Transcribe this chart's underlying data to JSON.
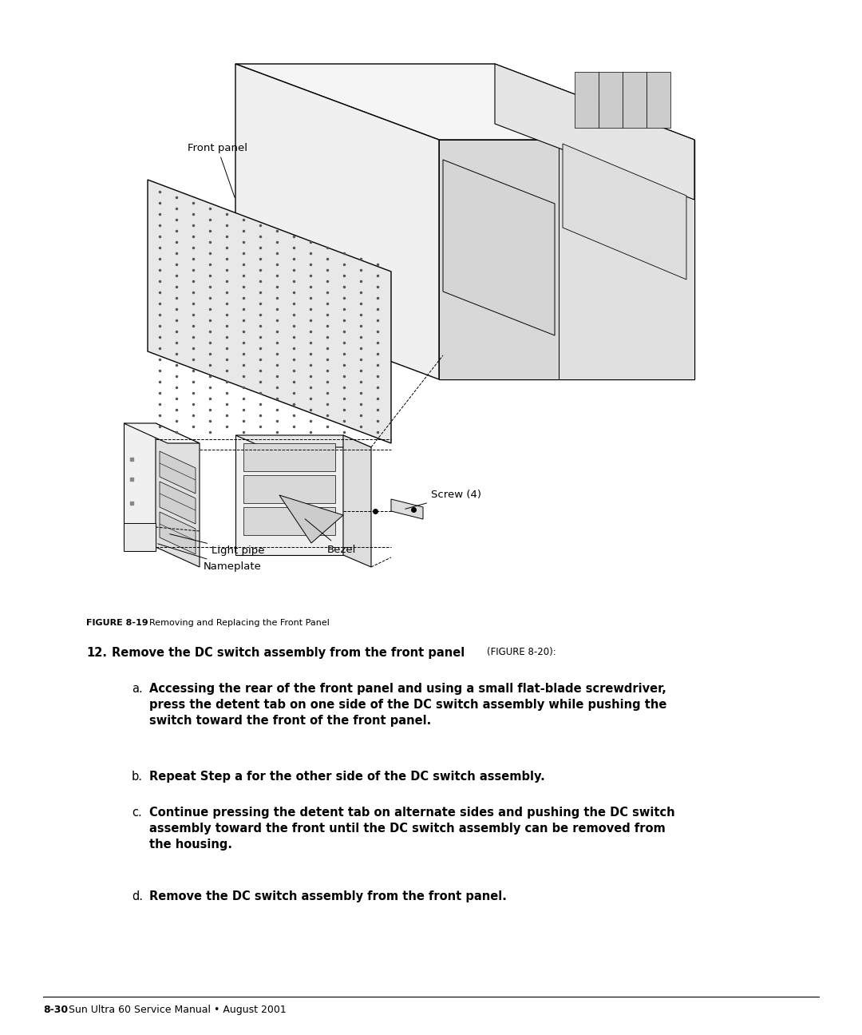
{
  "bg_color": "#ffffff",
  "page_width": 10.8,
  "page_height": 12.96,
  "figure_caption_bold": "FIGURE 8-19",
  "figure_caption_normal": "  Removing and Replacing the Front Panel",
  "step12_bold": "12. Remove the DC switch assembly from the front panel ",
  "step12_ref": "(FIGURE 8-20):",
  "step_a_label": "a.",
  "step_a_text": "Accessing the rear of the front panel and using a small flat-blade screwdriver,\npress the detent tab on one side of the DC switch assembly while pushing the\nswitch toward the front of the front panel.",
  "step_b_label": "b.",
  "step_b_text": "Repeat Step a for the other side of the DC switch assembly.",
  "step_c_label": "c.",
  "step_c_text": "Continue pressing the detent tab on alternate sides and pushing the DC switch\nassembly toward the front until the DC switch assembly can be removed from\nthe housing.",
  "step_d_label": "d.",
  "step_d_text": "Remove the DC switch assembly from the front panel.",
  "footer_bold": "8-30",
  "footer_normal": " Sun Ultra 60 Service Manual • August 2001",
  "label_front_panel": "Front panel",
  "label_screw": "Screw (4)",
  "label_light_pipe": "Light pipe",
  "label_bezel": "Bezel",
  "label_nameplate": "Nameplate"
}
